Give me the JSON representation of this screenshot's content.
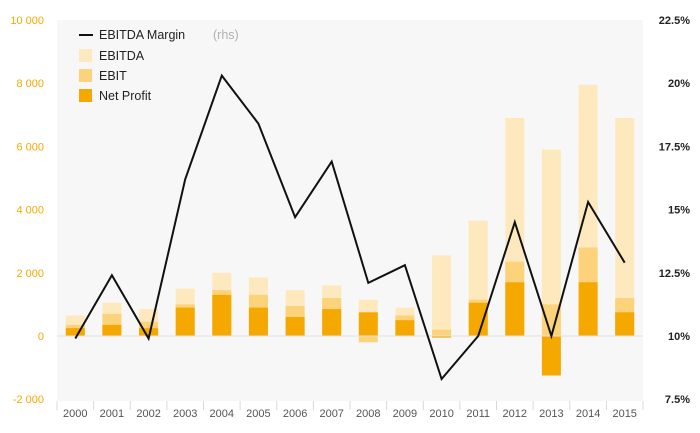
{
  "chart_data": {
    "type": "bar",
    "categories": [
      "2000",
      "2001",
      "2002",
      "2003",
      "2004",
      "2005",
      "2006",
      "2007",
      "2008",
      "2009",
      "2010",
      "2011",
      "2012",
      "2013",
      "2014",
      "2015"
    ],
    "series": [
      {
        "name": "EBITDA",
        "kind": "bar",
        "axis": "left",
        "color": "#fde9bd",
        "values": [
          650,
          1050,
          850,
          1500,
          2000,
          1850,
          1450,
          1600,
          1150,
          900,
          2550,
          3650,
          6900,
          5900,
          7950,
          6900
        ]
      },
      {
        "name": "EBIT",
        "kind": "bar",
        "axis": "left",
        "color": "#fcd27a",
        "values": [
          350,
          700,
          450,
          1000,
          1450,
          1300,
          950,
          1200,
          -200,
          650,
          200,
          1150,
          2350,
          1000,
          2800,
          1200
        ]
      },
      {
        "name": "Net Profit",
        "kind": "bar",
        "axis": "left",
        "color": "#f5a800",
        "values": [
          250,
          350,
          250,
          900,
          1300,
          900,
          600,
          850,
          750,
          500,
          -50,
          1050,
          1700,
          -1250,
          1700,
          750
        ]
      },
      {
        "name": "EBITDA Margin",
        "kind": "line",
        "axis": "right",
        "color": "#111111",
        "values": [
          9.9,
          12.4,
          9.9,
          16.2,
          20.3,
          18.4,
          14.7,
          16.9,
          12.1,
          12.8,
          8.3,
          10.0,
          14.5,
          10.0,
          15.3,
          12.9
        ]
      }
    ],
    "legend_note": "(rhs)",
    "y_left": {
      "ylim": [
        -2000,
        10000
      ],
      "ticks": [
        "-2 000",
        "0",
        "2 000",
        "4 000",
        "6 000",
        "8 000",
        "10 000"
      ],
      "tick_values": [
        -2000,
        0,
        2000,
        4000,
        6000,
        8000,
        10000
      ]
    },
    "y_right": {
      "ylim": [
        7.5,
        22.5
      ],
      "ticks": [
        "7.5%",
        "10%",
        "12.5%",
        "15%",
        "17.5%",
        "20%",
        "22.5%"
      ],
      "tick_values": [
        7.5,
        10,
        12.5,
        15,
        17.5,
        20,
        22.5
      ]
    },
    "legend_placement": "top-left",
    "grid": false,
    "colors": {
      "plot_background": "#f7f7f7",
      "left_axis_text": "#f5a800"
    }
  }
}
